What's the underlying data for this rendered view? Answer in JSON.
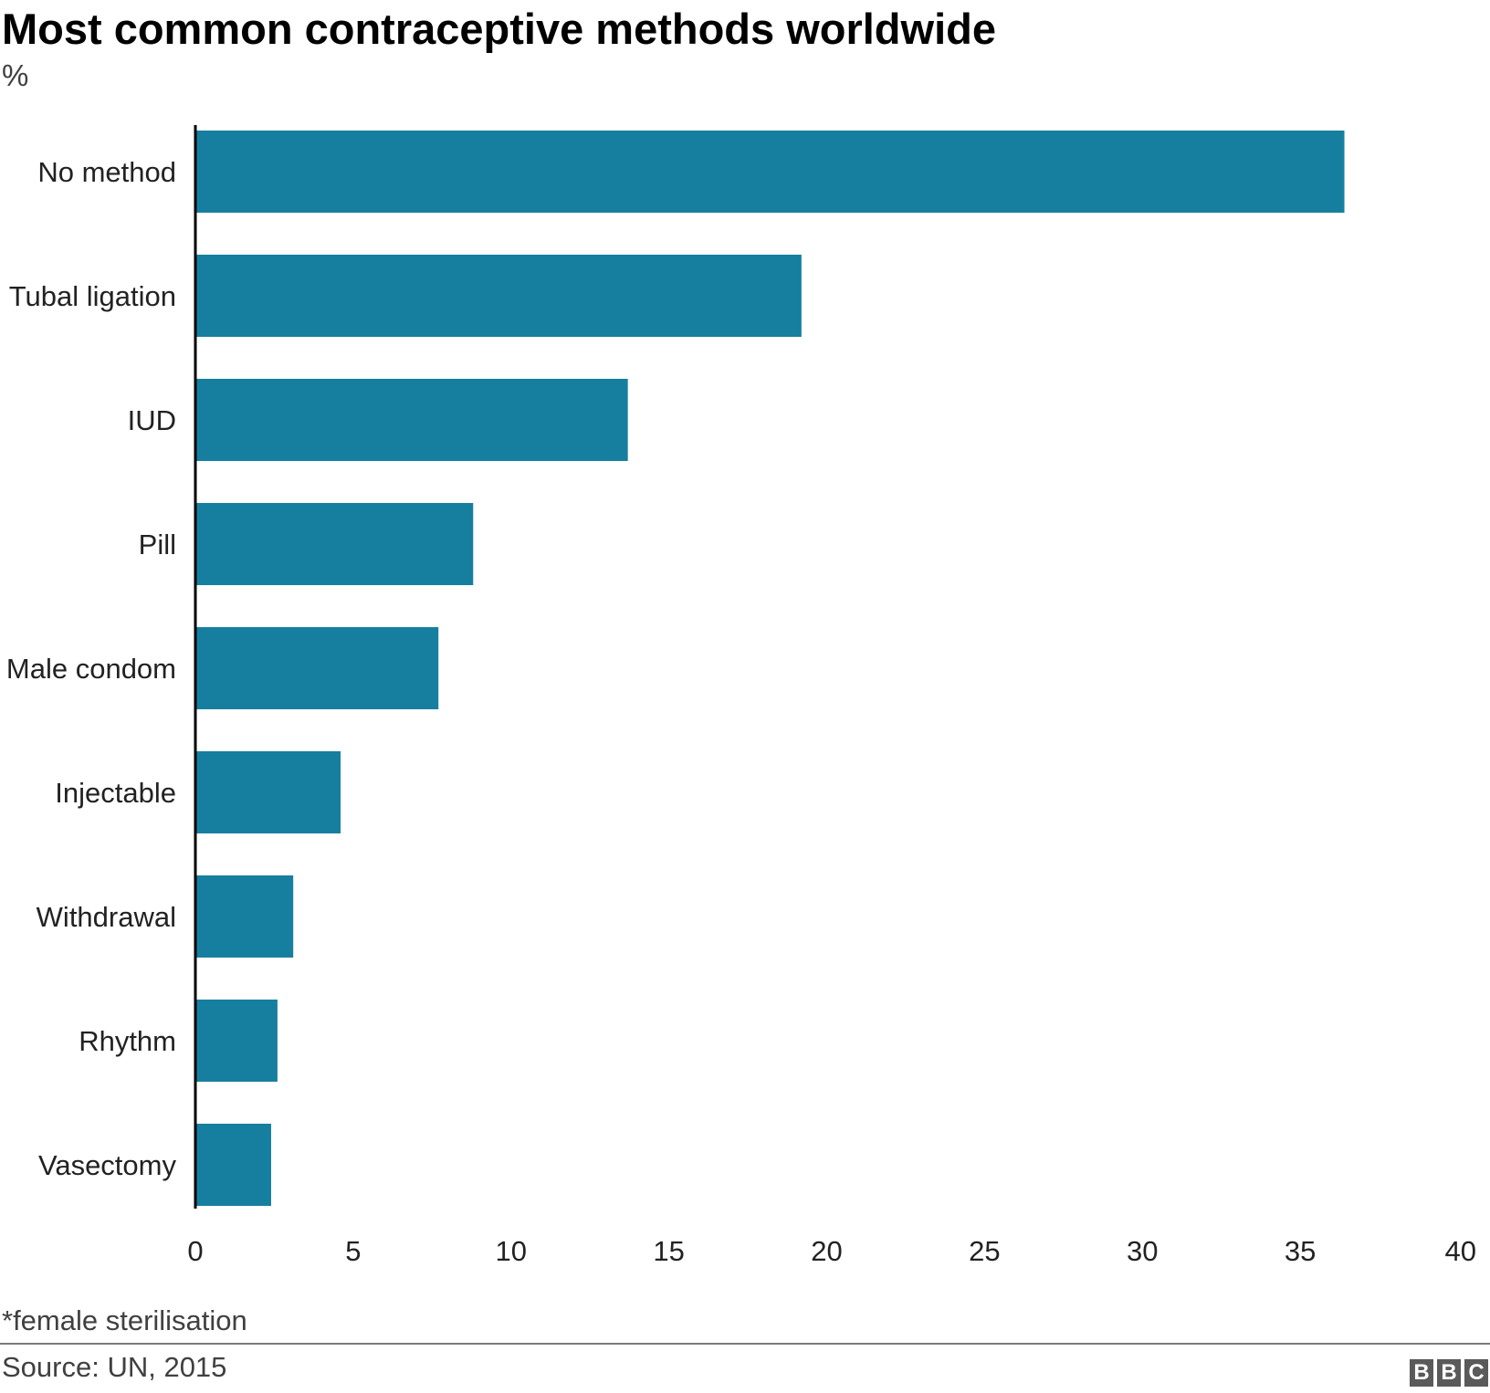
{
  "chart_data": {
    "type": "bar",
    "orientation": "horizontal",
    "title": "Most common contraceptive methods worldwide",
    "subtitle": "%",
    "categories": [
      "No method",
      "Tubal ligation",
      "IUD",
      "Pill",
      "Male condom",
      "Injectable",
      "Withdrawal",
      "Rhythm",
      "Vasectomy"
    ],
    "values": [
      36.4,
      19.2,
      13.7,
      8.8,
      7.7,
      4.6,
      3.1,
      2.6,
      2.4
    ],
    "xlim": [
      0,
      40
    ],
    "xticks": [
      "0",
      "5",
      "10",
      "15",
      "20",
      "25",
      "30",
      "35",
      "40"
    ],
    "grid": false,
    "legend": "none",
    "colors": {
      "bar": "#167f9f",
      "axis": "#000000"
    }
  },
  "footnote": "*female sterilisation",
  "source": "Source: UN, 2015",
  "logo": {
    "letters": [
      "B",
      "B",
      "C"
    ]
  }
}
